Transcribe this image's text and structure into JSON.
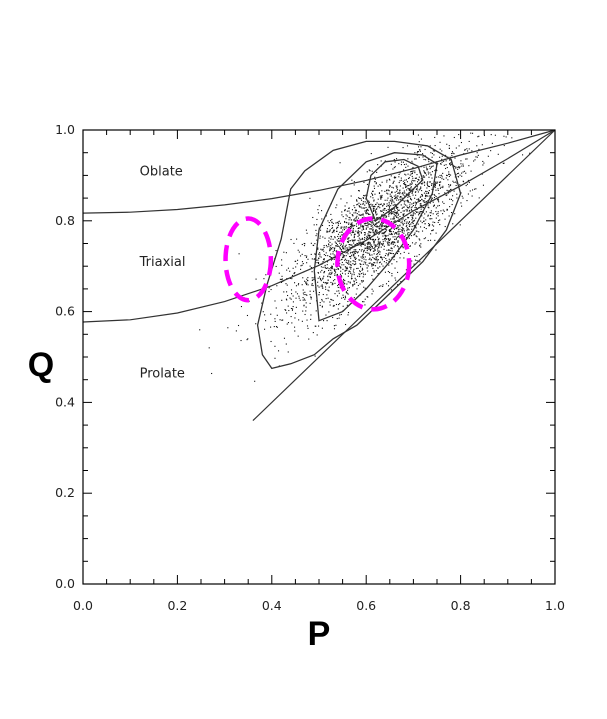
{
  "chart_data": {
    "type": "scatter",
    "title": "",
    "xlabel": "P",
    "ylabel": "Q",
    "xlim": [
      0.0,
      1.0
    ],
    "ylim": [
      0.0,
      1.0
    ],
    "x_ticks": [
      "0.0",
      "0.2",
      "0.4",
      "0.6",
      "0.8",
      "1.0"
    ],
    "y_ticks": [
      "0.0",
      "0.2",
      "0.4",
      "0.6",
      "0.8",
      "1.0"
    ],
    "grid": false,
    "legend": "none",
    "region_labels": [
      {
        "text": "Oblate",
        "x": 0.12,
        "y": 0.9
      },
      {
        "text": "Triaxial",
        "x": 0.12,
        "y": 0.7
      },
      {
        "text": "Prolate",
        "x": 0.12,
        "y": 0.455
      }
    ],
    "boundary_curves": [
      {
        "x": [
          0.0,
          0.1,
          0.2,
          0.3,
          0.4,
          0.5,
          0.6,
          0.7,
          0.8,
          0.9,
          1.0
        ],
        "y": [
          0.817,
          0.819,
          0.825,
          0.835,
          0.849,
          0.867,
          0.889,
          0.915,
          0.945,
          0.971,
          1.0
        ]
      },
      {
        "x": [
          0.0,
          0.1,
          0.2,
          0.3,
          0.4,
          0.5,
          0.6,
          0.7,
          0.8,
          0.9,
          1.0
        ],
        "y": [
          0.577,
          0.582,
          0.597,
          0.622,
          0.657,
          0.702,
          0.757,
          0.822,
          0.877,
          0.937,
          1.0
        ]
      }
    ],
    "diagonal": {
      "x": [
        0.36,
        1.0
      ],
      "y": [
        0.36,
        1.0
      ]
    },
    "contours": [
      {
        "level": "outer",
        "x": [
          0.4,
          0.44,
          0.49,
          0.53,
          0.58,
          0.63,
          0.67,
          0.72,
          0.77,
          0.8,
          0.78,
          0.73,
          0.66,
          0.6,
          0.53,
          0.47,
          0.44,
          0.42,
          0.39,
          0.37,
          0.38,
          0.4
        ],
        "y": [
          0.475,
          0.485,
          0.505,
          0.54,
          0.57,
          0.62,
          0.66,
          0.71,
          0.78,
          0.86,
          0.935,
          0.965,
          0.975,
          0.975,
          0.955,
          0.91,
          0.87,
          0.76,
          0.66,
          0.57,
          0.505,
          0.475
        ]
      },
      {
        "level": "middle",
        "x": [
          0.5,
          0.55,
          0.6,
          0.65,
          0.7,
          0.74,
          0.75,
          0.72,
          0.66,
          0.6,
          0.54,
          0.5,
          0.49,
          0.5
        ],
        "y": [
          0.58,
          0.6,
          0.65,
          0.71,
          0.78,
          0.86,
          0.925,
          0.945,
          0.95,
          0.93,
          0.87,
          0.78,
          0.69,
          0.58
        ]
      },
      {
        "level": "inner",
        "x": [
          0.62,
          0.66,
          0.7,
          0.72,
          0.71,
          0.68,
          0.64,
          0.61,
          0.6,
          0.62
        ],
        "y": [
          0.8,
          0.83,
          0.87,
          0.89,
          0.92,
          0.935,
          0.93,
          0.9,
          0.85,
          0.8
        ]
      }
    ],
    "highlight_ellipses": [
      {
        "cx": 0.35,
        "cy": 0.715,
        "rx": 0.048,
        "ry": 0.09,
        "color": "#ff00ff",
        "style": "dashed"
      },
      {
        "cx": 0.615,
        "cy": 0.705,
        "rx": 0.076,
        "ry": 0.1,
        "color": "#ff00ff",
        "style": "dashed"
      }
    ],
    "point_density_center": {
      "x": 0.62,
      "y": 0.78
    }
  },
  "colors": {
    "axis": "#000000",
    "curve": "#333333",
    "points": "#111111",
    "highlight": "#ff00ff"
  }
}
